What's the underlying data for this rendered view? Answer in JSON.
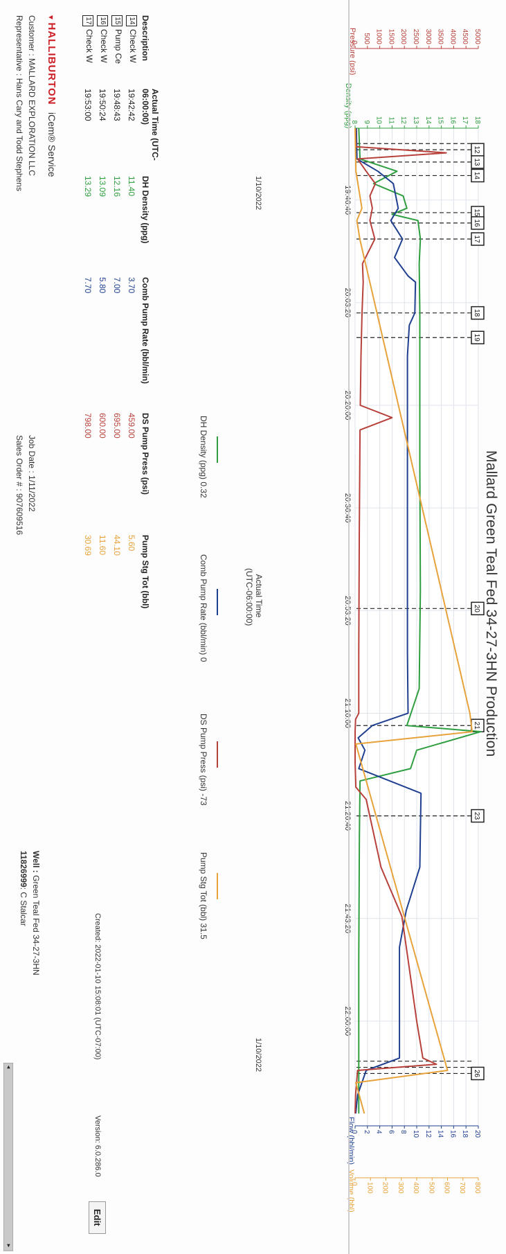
{
  "header": {
    "title": "Mallard Green Teal Fed 34-27-3HN Production"
  },
  "axes": {
    "pressure_label": "Pressure (psi)",
    "density_label": "Density (ppg)",
    "flow_label": "Flow (bbl/min)",
    "volume_label": "Volume (bbl)",
    "x_label_line1": "Actual Time",
    "x_label_line2": "(UTC-06:00:00)",
    "pressure_ticks": [
      "0",
      "500",
      "1000",
      "1500",
      "2000",
      "2500",
      "3000",
      "3500",
      "4000",
      "4500",
      "5000"
    ],
    "density_ticks": [
      "8",
      "9",
      "10",
      "11",
      "12",
      "13",
      "14",
      "15",
      "16",
      "17",
      "18"
    ],
    "flow_ticks": [
      "0",
      "2",
      "4",
      "6",
      "8",
      "10",
      "12",
      "14",
      "16",
      "18",
      "20"
    ],
    "volume_ticks": [
      "0",
      "100",
      "200",
      "300",
      "400",
      "500",
      "600",
      "700",
      "800"
    ],
    "time_ticks": [
      "19:46:40",
      "20:03:20",
      "20:20:00",
      "20:36:40",
      "20:53:20",
      "21:10:00",
      "21:26:40",
      "21:43:20",
      "22:00:00"
    ],
    "date_left": "1/10/2022",
    "date_right": "1/10/2022"
  },
  "chart_data": {
    "type": "line",
    "title": "Mallard Green Teal Fed 34-27-3HN Production",
    "xlabel": "Actual Time (UTC-06:00:00)",
    "x_range": [
      "19:35:00",
      "22:17:00"
    ],
    "y_axes": {
      "pressure": {
        "label": "Pressure (psi)",
        "range": [
          0,
          5000
        ]
      },
      "density": {
        "label": "Density (ppg)",
        "range": [
          8,
          18
        ]
      },
      "flow": {
        "label": "Flow (bbl/min)",
        "range": [
          0,
          20
        ]
      },
      "volume": {
        "label": "Volume (bbl)",
        "range": [
          0,
          800
        ]
      }
    },
    "series": [
      {
        "name": "DH Density (ppg)",
        "axis": "density",
        "color": "#2e9e3e",
        "points": [
          [
            "19:35:00",
            8.3
          ],
          [
            "19:40:00",
            8.4
          ],
          [
            "19:42:00",
            11.4
          ],
          [
            "19:44:00",
            9.5
          ],
          [
            "19:46:00",
            11.9
          ],
          [
            "19:48:00",
            12.2
          ],
          [
            "19:49:00",
            11.0
          ],
          [
            "19:50:00",
            13.1
          ],
          [
            "19:53:00",
            13.3
          ],
          [
            "19:57:00",
            13.2
          ],
          [
            "20:05:00",
            13.25
          ],
          [
            "20:30:00",
            13.25
          ],
          [
            "20:50:00",
            13.3
          ],
          [
            "21:06:00",
            13.2
          ],
          [
            "21:12:00",
            12.2
          ],
          [
            "21:13:00",
            18.2
          ],
          [
            "21:16:00",
            13.0
          ],
          [
            "21:19:00",
            12.5
          ],
          [
            "21:21:00",
            8.4
          ],
          [
            "21:30:00",
            8.35
          ],
          [
            "21:50:00",
            8.3
          ],
          [
            "22:10:00",
            8.3
          ],
          [
            "22:15:00",
            8.3
          ]
        ]
      },
      {
        "name": "Comb Pump Rate (bbl/min)",
        "axis": "flow",
        "color": "#1f3f8f",
        "points": [
          [
            "19:35:00",
            0.2
          ],
          [
            "19:40:00",
            0.3
          ],
          [
            "19:42:00",
            3.7
          ],
          [
            "19:44:00",
            6.2
          ],
          [
            "19:48:00",
            7.0
          ],
          [
            "19:50:00",
            5.8
          ],
          [
            "19:53:00",
            7.7
          ],
          [
            "19:56:00",
            6.4
          ],
          [
            "19:59:00",
            8.6
          ],
          [
            "20:00:00",
            9.8
          ],
          [
            "20:05:00",
            9.7
          ],
          [
            "20:07:00",
            8.8
          ],
          [
            "20:12:00",
            8.5
          ],
          [
            "20:35:00",
            8.5
          ],
          [
            "21:00:00",
            8.5
          ],
          [
            "21:10:00",
            8.6
          ],
          [
            "21:12:00",
            2.8
          ],
          [
            "21:14:00",
            0.5
          ],
          [
            "21:16:00",
            1.6
          ],
          [
            "21:19:00",
            0.6
          ],
          [
            "21:23:00",
            10.7
          ],
          [
            "21:35:00",
            10.5
          ],
          [
            "21:42:00",
            8.3
          ],
          [
            "21:48:00",
            7.2
          ],
          [
            "22:06:00",
            7.2
          ],
          [
            "22:08:00",
            1.8
          ],
          [
            "22:12:00",
            0.4
          ],
          [
            "22:15:00",
            0.1
          ]
        ]
      },
      {
        "name": "DS Pump Press (psi)",
        "axis": "pressure",
        "color": "#b8403a",
        "points": [
          [
            "19:35:00",
            10
          ],
          [
            "19:38:00",
            30
          ],
          [
            "19:39:00",
            3700
          ],
          [
            "19:40:00",
            100
          ],
          [
            "19:42:00",
            450
          ],
          [
            "19:44:00",
            820
          ],
          [
            "19:46:00",
            600
          ],
          [
            "19:48:00",
            700
          ],
          [
            "19:50:00",
            600
          ],
          [
            "19:53:00",
            800
          ],
          [
            "19:57:00",
            300
          ],
          [
            "20:00:00",
            330
          ],
          [
            "20:05:00",
            280
          ],
          [
            "20:12:00",
            240
          ],
          [
            "20:20:00",
            210
          ],
          [
            "20:22:00",
            1500
          ],
          [
            "20:24:00",
            200
          ],
          [
            "20:40:00",
            170
          ],
          [
            "21:00:00",
            150
          ],
          [
            "21:10:00",
            150
          ],
          [
            "21:11:00",
            20
          ],
          [
            "21:13:00",
            0
          ],
          [
            "21:18:00",
            0
          ],
          [
            "21:22:00",
            30
          ],
          [
            "21:24:00",
            450
          ],
          [
            "21:35:00",
            1050
          ],
          [
            "21:43:00",
            1900
          ],
          [
            "21:50:00",
            2150
          ],
          [
            "22:00:00",
            2500
          ],
          [
            "22:06:00",
            2750
          ],
          [
            "22:07:00",
            3300
          ],
          [
            "22:08:00",
            100
          ],
          [
            "22:12:00",
            20
          ],
          [
            "22:15:00",
            0
          ]
        ]
      },
      {
        "name": "Pump Stg Tot (bbl)",
        "axis": "volume",
        "color": "#e8a23a",
        "points": [
          [
            "19:35:00",
            0
          ],
          [
            "19:42:00",
            5.6
          ],
          [
            "19:48:00",
            44.1
          ],
          [
            "19:50:00",
            11.6
          ],
          [
            "19:53:00",
            30.7
          ],
          [
            "21:10:00",
            745
          ],
          [
            "21:13:00",
            760
          ],
          [
            "21:15:00",
            5
          ],
          [
            "22:08:00",
            600
          ],
          [
            "22:10:00",
            5
          ],
          [
            "22:15:00",
            60
          ]
        ]
      }
    ],
    "events": [
      {
        "id": "11",
        "time": "19:37:30"
      },
      {
        "id": "12",
        "time": "19:38:30"
      },
      {
        "id": "13",
        "time": "19:40:30"
      },
      {
        "id": "14",
        "time": "19:42:42"
      },
      {
        "id": "15",
        "time": "19:48:43"
      },
      {
        "id": "16",
        "time": "19:50:24"
      },
      {
        "id": "17",
        "time": "19:53:00"
      },
      {
        "id": "18",
        "time": "20:05:00"
      },
      {
        "id": "19",
        "time": "20:09:00"
      },
      {
        "id": "20",
        "time": "20:53:00"
      },
      {
        "id": "21",
        "time": "21:12:00"
      },
      {
        "id": "23",
        "time": "21:26:40"
      },
      {
        "id": "24",
        "time": "22:06:30"
      },
      {
        "id": "25",
        "time": "22:07:30"
      },
      {
        "id": "26",
        "time": "22:08:30"
      }
    ],
    "event_labels": [
      "12",
      "13",
      "14",
      "15",
      "16",
      "17",
      "18",
      "19",
      "20",
      "21",
      "23",
      "26"
    ],
    "grid": true,
    "legend_placement": "bottom"
  },
  "legend": {
    "items": [
      {
        "label": "DH Density (ppg) 0.32",
        "color": "#2e9e3e"
      },
      {
        "label": "Comb Pump Rate (bbl/min) 0",
        "color": "#1f3f8f"
      },
      {
        "label": "DS Pump Press (psi) -73",
        "color": "#b8403a"
      },
      {
        "label": "Pump Stg Tot (bbl) 31.5",
        "color": "#e8a23a"
      }
    ]
  },
  "table": {
    "headers": {
      "description": "Description",
      "time": "Actual Time (UTC-06:00:00)",
      "density": "DH Density (ppg)",
      "rate": "Comb Pump Rate (bbl/min)",
      "press": "DS Pump Press (psi)",
      "stg": "Pump Stg Tot (bbl)"
    },
    "rows": [
      {
        "id": "14",
        "desc": "Check W",
        "time": "19:42:42",
        "density": "11.40",
        "rate": "3.70",
        "press": "459.00",
        "stg": "5.60"
      },
      {
        "id": "15",
        "desc": "Pump Ce",
        "time": "19:48:43",
        "density": "12.16",
        "rate": "7.00",
        "press": "695.00",
        "stg": "44.10"
      },
      {
        "id": "16",
        "desc": "Check W",
        "time": "19:50:24",
        "density": "13.09",
        "rate": "5.80",
        "press": "600.00",
        "stg": "11.60"
      },
      {
        "id": "17",
        "desc": "Check W",
        "time": "19:53:00",
        "density": "13.29",
        "rate": "7.70",
        "press": "798.00",
        "stg": "30.69"
      }
    ]
  },
  "footer": {
    "logo": "HALLIBURTON",
    "service": "iCem® Service",
    "customer_label": "Customer :",
    "customer": "MALLARD EXPLORATION LLC",
    "rep_label": "Representative :",
    "rep": "Hans Cary and Todd Stephens",
    "job_date_label": "Job Date :",
    "job_date": "1/11/2022",
    "sales_order_label": "Sales Order # :",
    "sales_order": "907609516",
    "well_label": "Well :",
    "well": "Green Teal Fed 34-27-3HN",
    "engineer_code": "11826999",
    "engineer": "C Stalcar",
    "created": "Created: 2022-01-10 15:08:01 (UTC-07:00)",
    "version": "Version: 6.0.286.0",
    "edit_label": "Edit"
  },
  "colors": {
    "density": "#2e9e3e",
    "rate": "#1f3f8f",
    "pressure": "#b8403a",
    "volume": "#e8a23a",
    "brand": "#cc1f26"
  }
}
